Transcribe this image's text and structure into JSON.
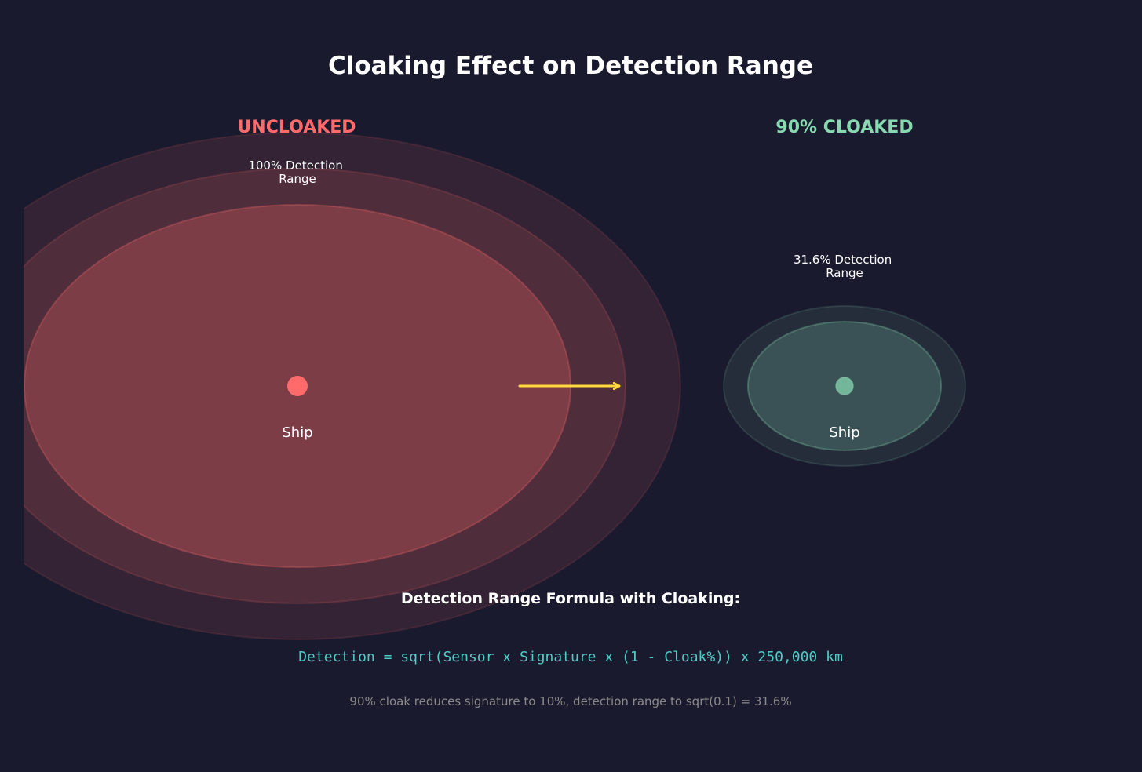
{
  "title": "Cloaking Effect on Detection Range",
  "colors": {
    "background": "#1a1a2e",
    "uncloaked": "#ff6b6b",
    "cloaked": "#88d8b0",
    "arrow": "#ffd93d",
    "formula": "#4ecdc4",
    "note": "#8a8a8a"
  },
  "uncloaked": {
    "heading": "UNCLOAKED",
    "range_label_line1": "100% Detection",
    "range_label_line2": "Range",
    "ship_label": "Ship"
  },
  "cloaked": {
    "heading": "90% CLOAKED",
    "range_label_line1": "31.6% Detection",
    "range_label_line2": "Range",
    "ship_label": "Ship"
  },
  "formula": {
    "heading": "Detection Range Formula with Cloaking:",
    "expression": "Detection = sqrt(Sensor x Signature x (1 - Cloak%)) x 250,000 km",
    "note": "90% cloak reduces signature to 10%, detection range to sqrt(0.1) = 31.6%"
  }
}
